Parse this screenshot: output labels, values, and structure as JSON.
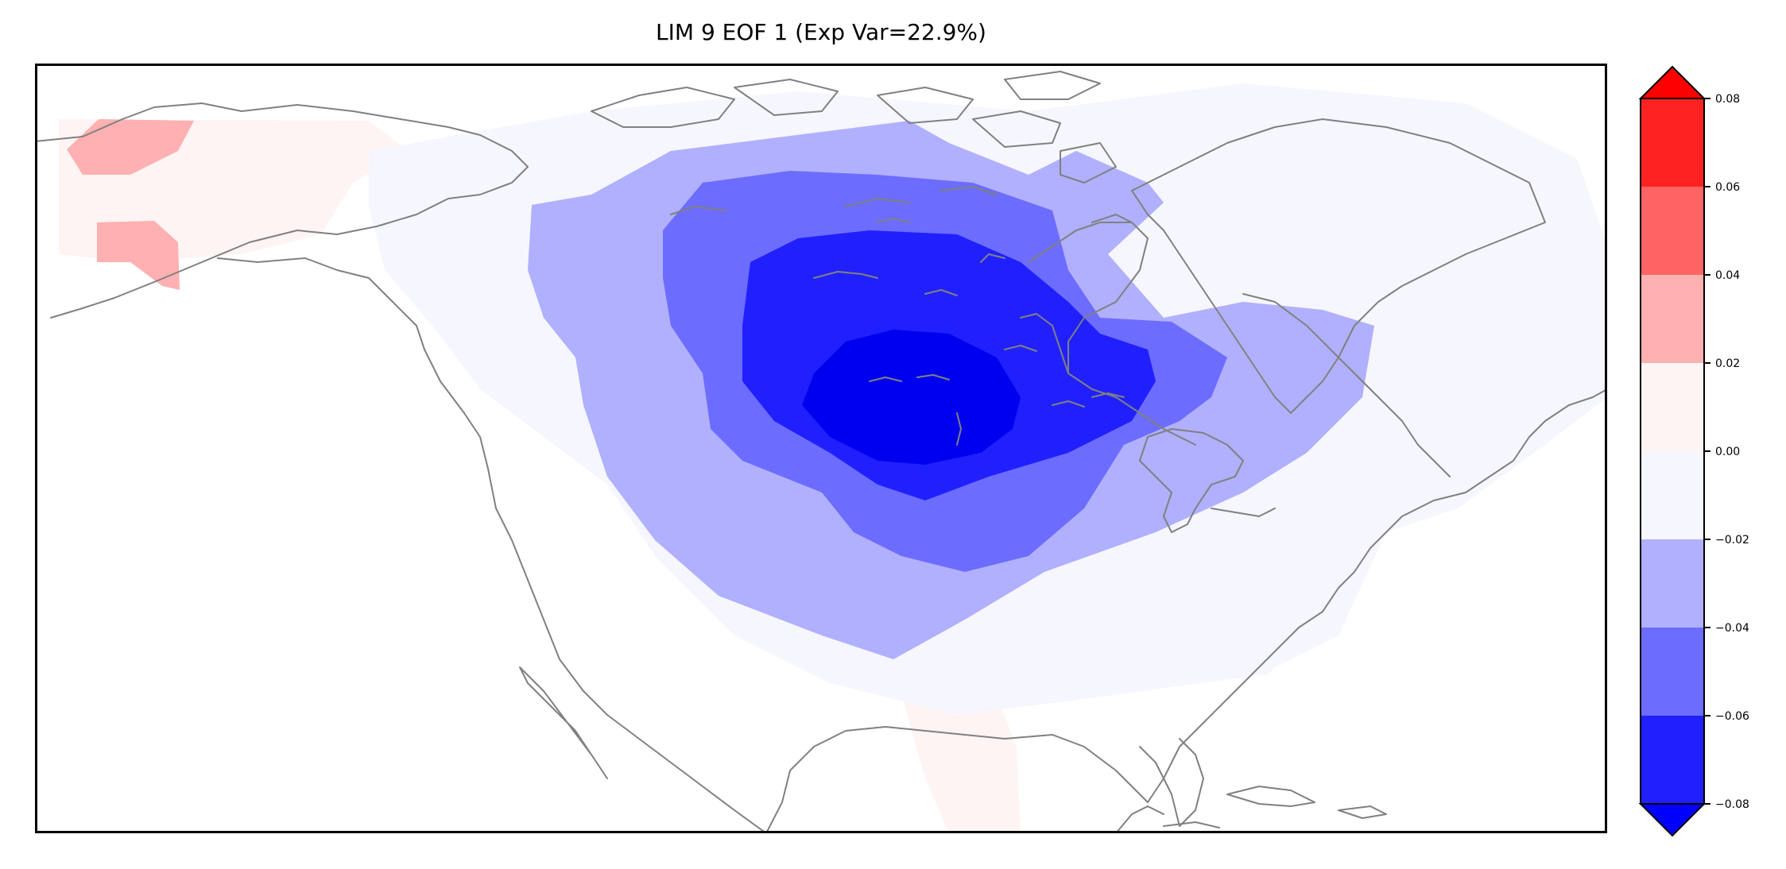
{
  "title": "LIM 9 EOF 1 (Exp Var=22.9%)",
  "colorbar": {
    "ticks": [
      {
        "value": 0.08,
        "label": "0.08"
      },
      {
        "value": 0.06,
        "label": "0.06"
      },
      {
        "value": 0.04,
        "label": "0.04"
      },
      {
        "value": 0.02,
        "label": "0.02"
      },
      {
        "value": 0.0,
        "label": "0.00"
      },
      {
        "value": -0.02,
        "label": "−0.02"
      },
      {
        "value": -0.04,
        "label": "−0.04"
      },
      {
        "value": -0.06,
        "label": "−0.06"
      },
      {
        "value": -0.08,
        "label": "−0.08"
      }
    ],
    "bands": [
      {
        "from": 0.06,
        "to": 0.08,
        "color": "#ff2222"
      },
      {
        "from": 0.04,
        "to": 0.06,
        "color": "#ff6464"
      },
      {
        "from": 0.02,
        "to": 0.04,
        "color": "#ffb0b0"
      },
      {
        "from": 0.0,
        "to": 0.02,
        "color": "#fff4f4"
      },
      {
        "from": -0.02,
        "to": 0.0,
        "color": "#f6f6ff"
      },
      {
        "from": -0.04,
        "to": -0.02,
        "color": "#b0b0ff"
      },
      {
        "from": -0.06,
        "to": -0.04,
        "color": "#6c6cff"
      },
      {
        "from": -0.08,
        "to": -0.06,
        "color": "#2020ff"
      }
    ],
    "extend_max_color": "#ff0000",
    "extend_min_color": "#0000ff"
  },
  "colors": {
    "coastline": "#808080",
    "frame": "#000000"
  }
}
